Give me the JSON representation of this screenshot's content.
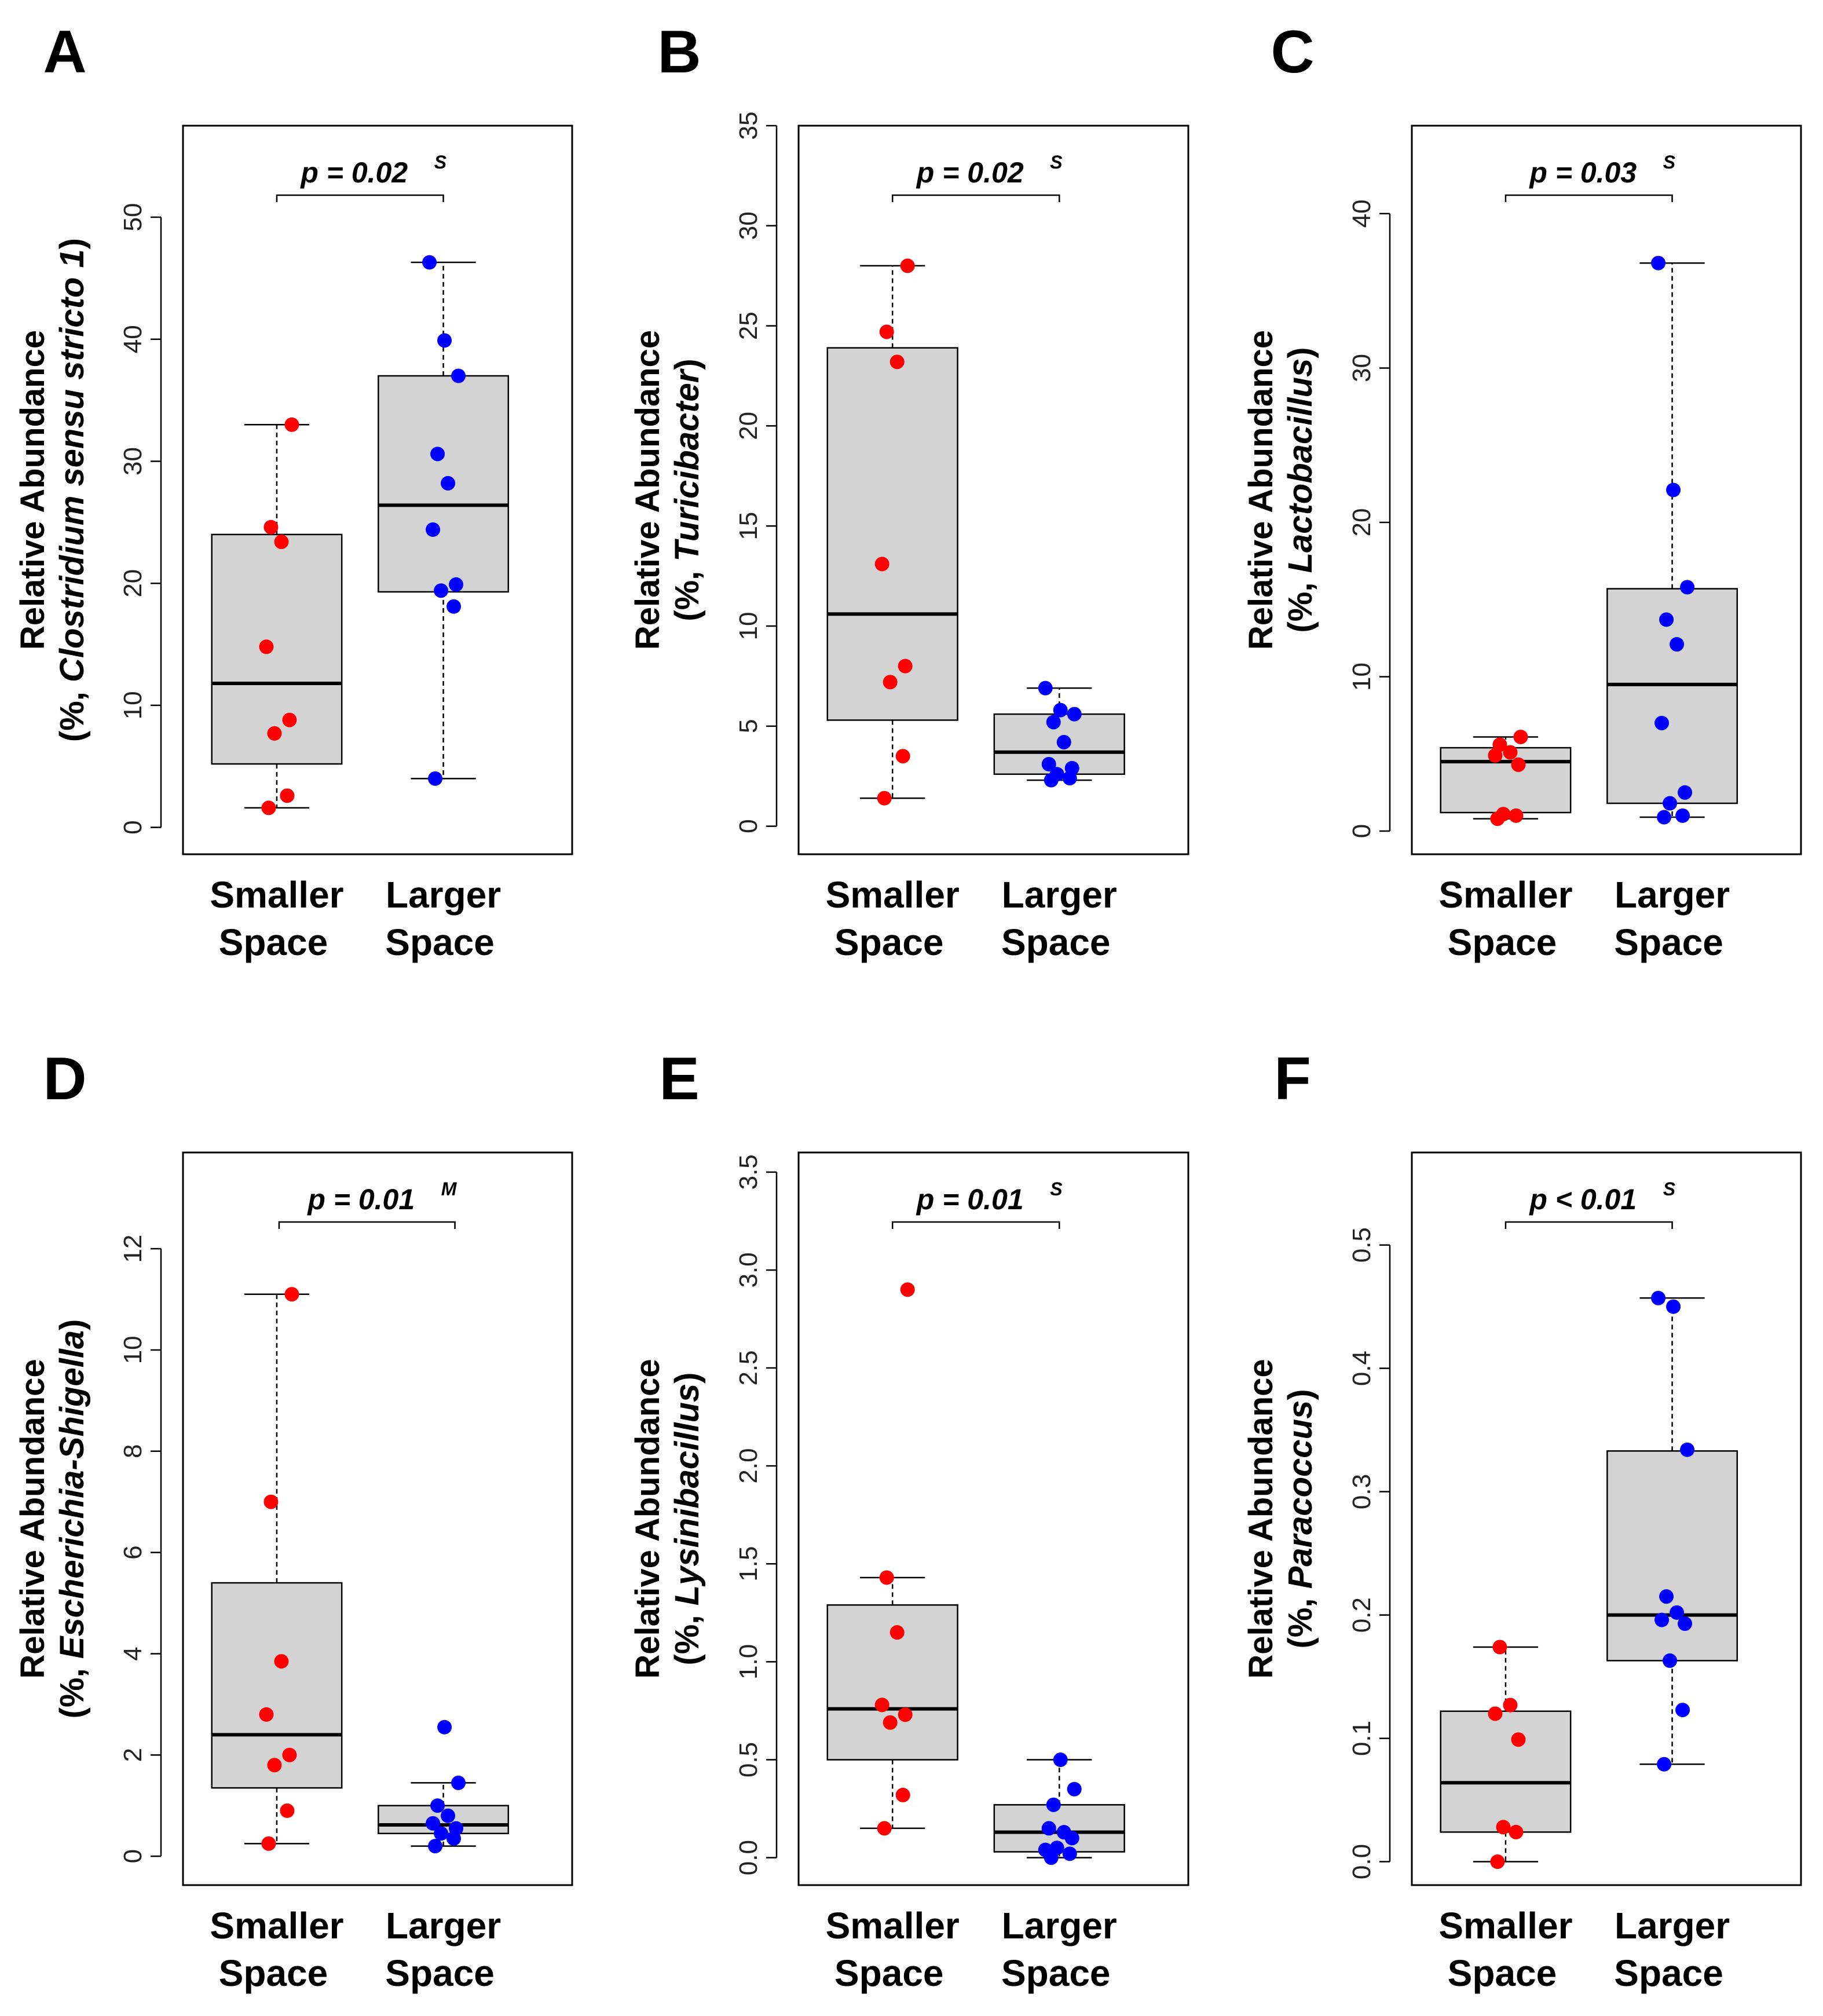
{
  "chart_data": [
    {
      "panel": "A",
      "type": "box",
      "ylabel_line1": "Relative Abundance",
      "ylabel_prefix": "(%, ",
      "ylabel_taxon": "Clostridium sensu stricto 1",
      "ylabel_suffix": ")",
      "yticks": [
        0,
        10,
        20,
        30,
        40,
        50
      ],
      "ylim": [
        -2.2,
        57.5
      ],
      "pvalue": "p = 0.02",
      "pvalue_sup": "S",
      "groups": [
        {
          "label_line1": "Smaller",
          "label_line2": "Space",
          "color": "#ff0000",
          "whisker_low": 1.6,
          "q1": 5.2,
          "median": 11.8,
          "q3": 24.0,
          "whisker_high": 33.0,
          "points": [
            1.6,
            2.6,
            7.7,
            8.8,
            14.8,
            23.4,
            24.6,
            33.0
          ]
        },
        {
          "label_line1": "Larger",
          "label_line2": "Space",
          "color": "#0000ff",
          "whisker_low": 4.0,
          "q1": 19.3,
          "median": 26.4,
          "q3": 37.0,
          "whisker_high": 46.3,
          "points": [
            4.0,
            18.1,
            19.4,
            19.9,
            24.4,
            28.2,
            30.6,
            37.0,
            39.9,
            46.3
          ]
        }
      ]
    },
    {
      "panel": "B",
      "type": "box",
      "ylabel_line1": "Relative Abundance",
      "ylabel_prefix": "(%, ",
      "ylabel_taxon": "Turicibacter",
      "ylabel_suffix": ")",
      "yticks": [
        0,
        5,
        10,
        15,
        20,
        25,
        30,
        35
      ],
      "ylim": [
        -1.4,
        35.0
      ],
      "pvalue": "p = 0.02",
      "pvalue_sup": "S",
      "groups": [
        {
          "label_line1": "Smaller",
          "label_line2": "Space",
          "color": "#ff0000",
          "whisker_low": 1.4,
          "q1": 5.3,
          "median": 10.6,
          "q3": 23.9,
          "whisker_high": 28.0,
          "points": [
            1.4,
            3.5,
            7.2,
            8.0,
            13.1,
            23.2,
            24.7,
            28.0
          ]
        },
        {
          "label_line1": "Larger",
          "label_line2": "Space",
          "color": "#0000ff",
          "whisker_low": 2.3,
          "q1": 2.6,
          "median": 3.7,
          "q3": 5.6,
          "whisker_high": 6.9,
          "points": [
            2.3,
            2.4,
            2.6,
            2.9,
            3.1,
            4.2,
            5.2,
            5.6,
            5.8,
            6.9
          ]
        }
      ]
    },
    {
      "panel": "C",
      "type": "box",
      "ylabel_line1": "Relative Abundance",
      "ylabel_prefix": "(%, ",
      "ylabel_taxon": "Lactobacillus",
      "ylabel_suffix": ")",
      "yticks": [
        0,
        10,
        20,
        30,
        40
      ],
      "ylim": [
        -1.5,
        45.7
      ],
      "pvalue": "p = 0.03",
      "pvalue_sup": "S",
      "groups": [
        {
          "label_line1": "Smaller",
          "label_line2": "Space",
          "color": "#ff0000",
          "whisker_low": 0.8,
          "q1": 1.2,
          "median": 4.5,
          "q3": 5.4,
          "whisker_high": 6.1,
          "points": [
            0.8,
            1.0,
            1.1,
            4.3,
            4.9,
            5.1,
            5.6,
            6.1
          ]
        },
        {
          "label_line1": "Larger",
          "label_line2": "Space",
          "color": "#0000ff",
          "whisker_low": 0.9,
          "q1": 1.8,
          "median": 9.5,
          "q3": 15.7,
          "whisker_high": 36.8,
          "points": [
            0.9,
            1.0,
            1.8,
            2.5,
            7.0,
            12.1,
            13.7,
            15.8,
            22.1,
            36.8
          ]
        }
      ]
    },
    {
      "panel": "D",
      "type": "box",
      "ylabel_line1": "Relative Abundance",
      "ylabel_prefix": "(%, ",
      "ylabel_taxon": "Escherichia-Shigella",
      "ylabel_suffix": ")",
      "yticks": [
        0,
        2,
        4,
        6,
        8,
        10,
        12
      ],
      "ylim": [
        -0.57,
        13.9
      ],
      "pvalue": "p = 0.01",
      "pvalue_sup": "M",
      "groups": [
        {
          "label_line1": "Smaller",
          "label_line2": "Space",
          "color": "#ff0000",
          "whisker_low": 0.25,
          "q1": 1.35,
          "median": 2.4,
          "q3": 5.4,
          "whisker_high": 11.1,
          "points": [
            0.25,
            0.9,
            1.8,
            2.0,
            2.8,
            3.85,
            7.0,
            11.1
          ]
        },
        {
          "label_line1": "Larger",
          "label_line2": "Space",
          "color": "#0000ff",
          "whisker_low": 0.2,
          "q1": 0.45,
          "median": 0.62,
          "q3": 1.0,
          "whisker_high": 1.45,
          "points": [
            0.2,
            0.35,
            0.45,
            0.55,
            0.65,
            0.8,
            1.0,
            1.45,
            2.55
          ]
        }
      ]
    },
    {
      "panel": "E",
      "type": "box",
      "ylabel_line1": "Relative Abundance",
      "ylabel_prefix": "(%, ",
      "ylabel_taxon": "Lysinibacillus",
      "ylabel_suffix": ")",
      "yticks": [
        "0.0",
        "0.5",
        "1.0",
        "1.5",
        "2.0",
        "2.5",
        "3.0",
        "3.5"
      ],
      "ylim": [
        -0.14,
        3.6
      ],
      "pvalue": "p = 0.01",
      "pvalue_sup": "S",
      "groups": [
        {
          "label_line1": "Smaller",
          "label_line2": "Space",
          "color": "#ff0000",
          "whisker_low": 0.15,
          "q1": 0.5,
          "median": 0.76,
          "q3": 1.29,
          "whisker_high": 1.43,
          "points": [
            0.15,
            0.32,
            0.69,
            0.73,
            0.78,
            1.15,
            1.43,
            2.9
          ]
        },
        {
          "label_line1": "Larger",
          "label_line2": "Space",
          "color": "#0000ff",
          "whisker_low": 0.0,
          "q1": 0.03,
          "median": 0.13,
          "q3": 0.27,
          "whisker_high": 0.5,
          "points": [
            0.0,
            0.02,
            0.05,
            0.1,
            0.15,
            0.13,
            0.27,
            0.35,
            0.5,
            0.04
          ]
        }
      ]
    },
    {
      "panel": "F",
      "type": "box",
      "ylabel_line1": "Relative Abundance",
      "ylabel_prefix": "(%, ",
      "ylabel_taxon": "Paracoccus",
      "ylabel_suffix": ")",
      "yticks": [
        "0.0",
        "0.1",
        "0.2",
        "0.3",
        "0.4",
        "0.5"
      ],
      "ylim": [
        -0.019,
        0.575
      ],
      "pvalue": "p < 0.01",
      "pvalue_sup": "S",
      "groups": [
        {
          "label_line1": "Smaller",
          "label_line2": "Space",
          "color": "#ff0000",
          "whisker_low": 0.0,
          "q1": 0.024,
          "median": 0.064,
          "q3": 0.122,
          "whisker_high": 0.174,
          "points": [
            0.0,
            0.024,
            0.028,
            0.099,
            0.12,
            0.127,
            0.174
          ]
        },
        {
          "label_line1": "Larger",
          "label_line2": "Space",
          "color": "#0000ff",
          "whisker_low": 0.079,
          "q1": 0.163,
          "median": 0.2,
          "q3": 0.333,
          "whisker_high": 0.457,
          "points": [
            0.079,
            0.123,
            0.163,
            0.193,
            0.196,
            0.202,
            0.215,
            0.334,
            0.45,
            0.457
          ]
        }
      ]
    }
  ]
}
